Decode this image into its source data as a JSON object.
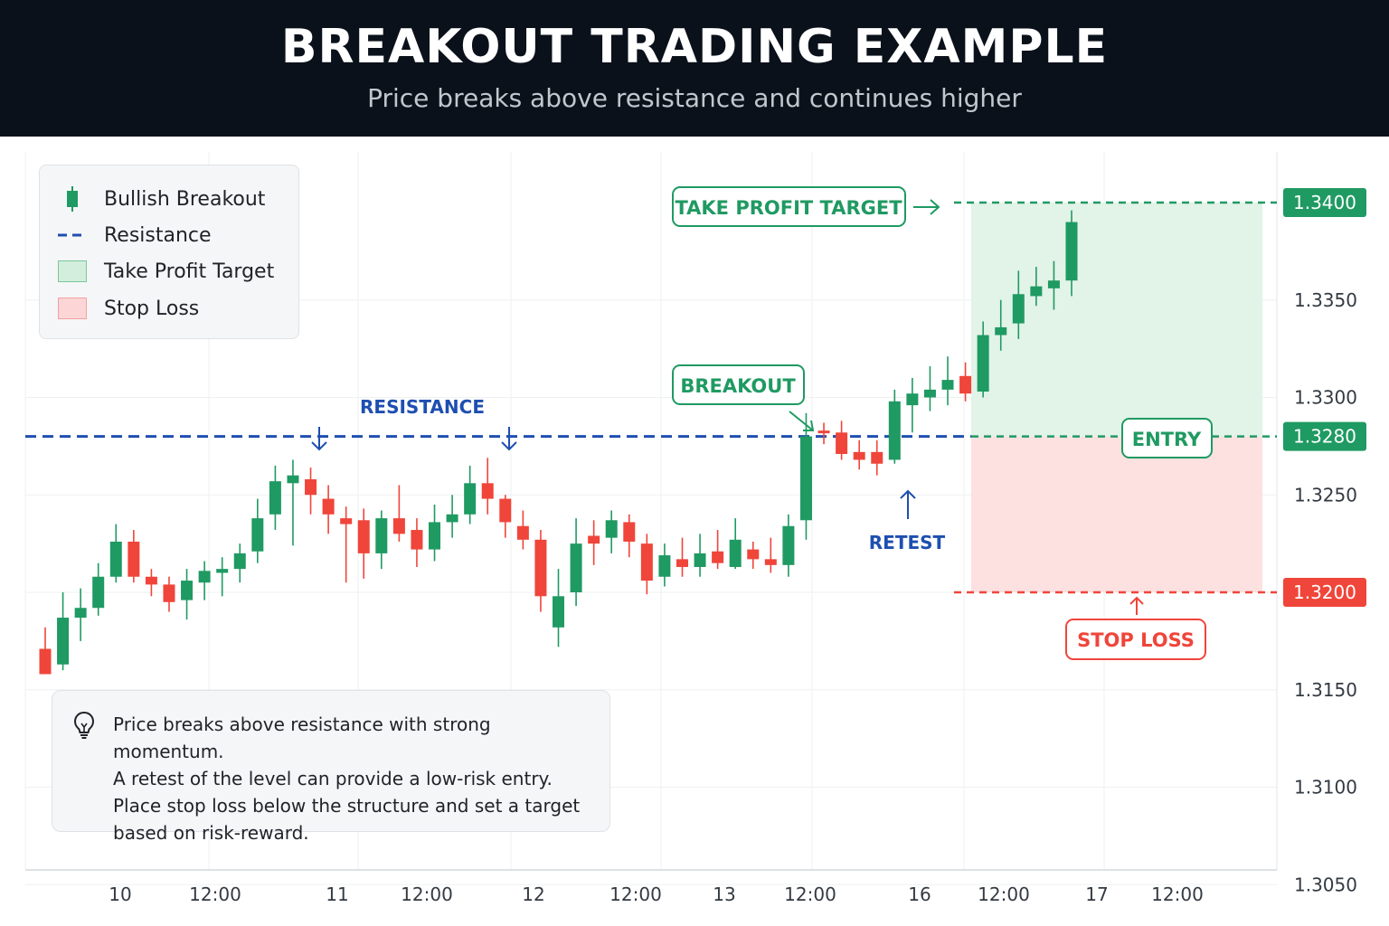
{
  "header": {
    "title": "BREAKOUT TRADING EXAMPLE",
    "subtitle": "Price breaks above resistance and continues higher"
  },
  "legend": {
    "items": [
      {
        "label": "Bullish Breakout",
        "icon": "green-candle-icon"
      },
      {
        "label": "Resistance",
        "icon": "blue-dashed-line-icon"
      },
      {
        "label": "Take Profit Target",
        "icon": "green-box-icon"
      },
      {
        "label": "Stop Loss",
        "icon": "red-box-icon"
      }
    ]
  },
  "info": {
    "icon": "lightbulb-icon",
    "lines": [
      "Price breaks above resistance with strong momentum.",
      "A retest of the level can provide a low-risk entry.",
      "Place stop loss below the structure and set a target",
      "based on risk-reward."
    ]
  },
  "colors": {
    "bull": "#1f9a62",
    "bear": "#f0453a",
    "resistance": "#1e4fb0",
    "target_zone": "#e2f3e8",
    "stop_zone": "#fde0e0",
    "header_bg": "#0b111a"
  },
  "chart_data": {
    "type": "candlestick",
    "title": "BREAKOUT TRADING EXAMPLE",
    "subtitle": "Price breaks above resistance and continues higher",
    "ylim": [
      1.305,
      1.341
    ],
    "y_ticks": [
      "1.3050",
      "1.3100",
      "1.3150",
      "1.3200",
      "1.3250",
      "1.3300",
      "1.3350"
    ],
    "x_tick_labels": [
      "10",
      "12:00",
      "11",
      "12:00",
      "12",
      "12:00",
      "13",
      "12:00",
      "16",
      "12:00",
      "17",
      "12:00"
    ],
    "grid": true,
    "legend_position": "top-left",
    "levels": {
      "resistance": 1.328,
      "entry": 1.328,
      "take_profit": 1.34,
      "stop_loss": 1.32
    },
    "level_labels": {
      "take_profit": "1.3400",
      "entry": "1.3280",
      "stop_loss": "1.3200"
    },
    "annotations": {
      "resistance": "RESISTANCE",
      "breakout": "BREAKOUT",
      "retest": "RETEST",
      "entry": "ENTRY",
      "take_profit": "TAKE PROFIT TARGET",
      "stop_loss": "STOP LOSS"
    },
    "candles": [
      {
        "o": 1.3171,
        "h": 1.3182,
        "l": 1.3158,
        "c": 1.3158
      },
      {
        "o": 1.3163,
        "h": 1.32,
        "l": 1.316,
        "c": 1.3187
      },
      {
        "o": 1.3187,
        "h": 1.3202,
        "l": 1.3175,
        "c": 1.3192
      },
      {
        "o": 1.3192,
        "h": 1.3215,
        "l": 1.3188,
        "c": 1.3208
      },
      {
        "o": 1.3208,
        "h": 1.3235,
        "l": 1.3205,
        "c": 1.3226
      },
      {
        "o": 1.3226,
        "h": 1.3232,
        "l": 1.3205,
        "c": 1.3208
      },
      {
        "o": 1.3208,
        "h": 1.3212,
        "l": 1.3198,
        "c": 1.3204
      },
      {
        "o": 1.3204,
        "h": 1.3208,
        "l": 1.319,
        "c": 1.3195
      },
      {
        "o": 1.3196,
        "h": 1.3212,
        "l": 1.3186,
        "c": 1.3206
      },
      {
        "o": 1.3205,
        "h": 1.3216,
        "l": 1.3196,
        "c": 1.3211
      },
      {
        "o": 1.321,
        "h": 1.3218,
        "l": 1.3198,
        "c": 1.3212
      },
      {
        "o": 1.3212,
        "h": 1.3225,
        "l": 1.3205,
        "c": 1.322
      },
      {
        "o": 1.3221,
        "h": 1.3248,
        "l": 1.3215,
        "c": 1.3238
      },
      {
        "o": 1.324,
        "h": 1.3265,
        "l": 1.3232,
        "c": 1.3257
      },
      {
        "o": 1.3256,
        "h": 1.3268,
        "l": 1.3224,
        "c": 1.326
      },
      {
        "o": 1.3258,
        "h": 1.3264,
        "l": 1.324,
        "c": 1.325
      },
      {
        "o": 1.3248,
        "h": 1.3255,
        "l": 1.323,
        "c": 1.324
      },
      {
        "o": 1.3238,
        "h": 1.3244,
        "l": 1.3205,
        "c": 1.3235
      },
      {
        "o": 1.3237,
        "h": 1.3243,
        "l": 1.3207,
        "c": 1.322
      },
      {
        "o": 1.322,
        "h": 1.3242,
        "l": 1.3212,
        "c": 1.3238
      },
      {
        "o": 1.3238,
        "h": 1.3255,
        "l": 1.3226,
        "c": 1.323
      },
      {
        "o": 1.3232,
        "h": 1.3238,
        "l": 1.3213,
        "c": 1.3222
      },
      {
        "o": 1.3222,
        "h": 1.3245,
        "l": 1.3216,
        "c": 1.3236
      },
      {
        "o": 1.3236,
        "h": 1.325,
        "l": 1.3228,
        "c": 1.324
      },
      {
        "o": 1.324,
        "h": 1.3265,
        "l": 1.3235,
        "c": 1.3256
      },
      {
        "o": 1.3256,
        "h": 1.3269,
        "l": 1.324,
        "c": 1.3248
      },
      {
        "o": 1.3248,
        "h": 1.325,
        "l": 1.3228,
        "c": 1.3236
      },
      {
        "o": 1.3234,
        "h": 1.3242,
        "l": 1.3222,
        "c": 1.3227
      },
      {
        "o": 1.3227,
        "h": 1.3232,
        "l": 1.319,
        "c": 1.3198
      },
      {
        "o": 1.3182,
        "h": 1.3212,
        "l": 1.3172,
        "c": 1.3198
      },
      {
        "o": 1.32,
        "h": 1.3238,
        "l": 1.3193,
        "c": 1.3225
      },
      {
        "o": 1.3229,
        "h": 1.3237,
        "l": 1.3214,
        "c": 1.3225
      },
      {
        "o": 1.3228,
        "h": 1.3242,
        "l": 1.322,
        "c": 1.3237
      },
      {
        "o": 1.3236,
        "h": 1.324,
        "l": 1.3218,
        "c": 1.3226
      },
      {
        "o": 1.3225,
        "h": 1.323,
        "l": 1.3199,
        "c": 1.3206
      },
      {
        "o": 1.3208,
        "h": 1.3225,
        "l": 1.3203,
        "c": 1.3219
      },
      {
        "o": 1.3217,
        "h": 1.3228,
        "l": 1.3208,
        "c": 1.3213
      },
      {
        "o": 1.3213,
        "h": 1.323,
        "l": 1.3208,
        "c": 1.322
      },
      {
        "o": 1.3221,
        "h": 1.3232,
        "l": 1.3212,
        "c": 1.3215
      },
      {
        "o": 1.3213,
        "h": 1.3238,
        "l": 1.3212,
        "c": 1.3227
      },
      {
        "o": 1.3222,
        "h": 1.3226,
        "l": 1.3212,
        "c": 1.3217
      },
      {
        "o": 1.3217,
        "h": 1.3228,
        "l": 1.321,
        "c": 1.3214
      },
      {
        "o": 1.3214,
        "h": 1.324,
        "l": 1.3208,
        "c": 1.3234
      },
      {
        "o": 1.3237,
        "h": 1.3292,
        "l": 1.3227,
        "c": 1.328
      },
      {
        "o": 1.3283,
        "h": 1.3287,
        "l": 1.3276,
        "c": 1.3282
      },
      {
        "o": 1.3282,
        "h": 1.3288,
        "l": 1.3268,
        "c": 1.3271
      },
      {
        "o": 1.3272,
        "h": 1.3278,
        "l": 1.3263,
        "c": 1.3268
      },
      {
        "o": 1.3272,
        "h": 1.3278,
        "l": 1.326,
        "c": 1.3266
      },
      {
        "o": 1.3268,
        "h": 1.3304,
        "l": 1.3266,
        "c": 1.3298
      },
      {
        "o": 1.3296,
        "h": 1.331,
        "l": 1.3282,
        "c": 1.3302
      },
      {
        "o": 1.33,
        "h": 1.3316,
        "l": 1.3293,
        "c": 1.3304
      },
      {
        "o": 1.3304,
        "h": 1.3321,
        "l": 1.3296,
        "c": 1.3309
      },
      {
        "o": 1.3311,
        "h": 1.3318,
        "l": 1.3298,
        "c": 1.3302
      },
      {
        "o": 1.3303,
        "h": 1.3339,
        "l": 1.33,
        "c": 1.3332
      },
      {
        "o": 1.3332,
        "h": 1.335,
        "l": 1.3324,
        "c": 1.3336
      },
      {
        "o": 1.3338,
        "h": 1.3365,
        "l": 1.333,
        "c": 1.3353
      },
      {
        "o": 1.3352,
        "h": 1.3367,
        "l": 1.3347,
        "c": 1.3357
      },
      {
        "o": 1.3356,
        "h": 1.337,
        "l": 1.3345,
        "c": 1.336
      },
      {
        "o": 1.336,
        "h": 1.3396,
        "l": 1.3352,
        "c": 1.339
      }
    ]
  }
}
